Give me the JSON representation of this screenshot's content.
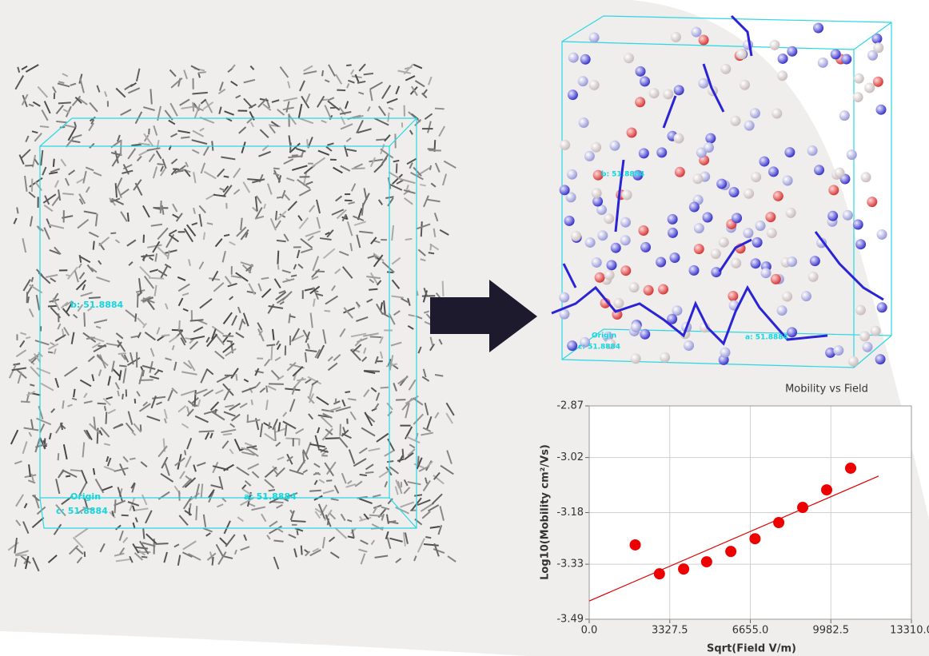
{
  "left_panel": {
    "labels": {
      "b": "b: 51.8884",
      "origin": "Origin",
      "a": "a: 51.8884",
      "c": "c: 51.8884"
    }
  },
  "right_panel": {
    "labels": {
      "b": "b: 51.8884",
      "origin": "Origin",
      "a": "a: 51.8884",
      "c": "c: 51.8884"
    }
  },
  "chart_data": {
    "type": "scatter",
    "title": "Mobility vs Field",
    "x_label": "Sqrt(Field V/m)",
    "y_label": "Log10(Mobility cm²/Vs)",
    "xlim": [
      0,
      13310
    ],
    "xticks": [
      {
        "value": 0,
        "label": "0.0"
      },
      {
        "value": 3327.5,
        "label": "3327.5"
      },
      {
        "value": 6655,
        "label": "6655.0"
      },
      {
        "value": 9982.5,
        "label": "9982.5"
      },
      {
        "value": 13310,
        "label": "13310.0"
      }
    ],
    "ylim": [
      -3.49,
      -2.87
    ],
    "yticks": [
      -2.87,
      -3.02,
      -3.18,
      -3.33,
      -3.49
    ],
    "grid": true,
    "points": {
      "color": "#ee0000",
      "x": [
        1900,
        2900,
        3900,
        4850,
        5850,
        6850,
        7830,
        8820,
        9810,
        10800
      ],
      "values": [
        -3.274,
        -3.358,
        -3.344,
        -3.323,
        -3.293,
        -3.256,
        -3.209,
        -3.165,
        -3.114,
        -3.051
      ]
    },
    "fit_line": {
      "color": "#e00000",
      "x": [
        0,
        11955
      ],
      "values": [
        -3.437,
        -3.074
      ]
    }
  }
}
